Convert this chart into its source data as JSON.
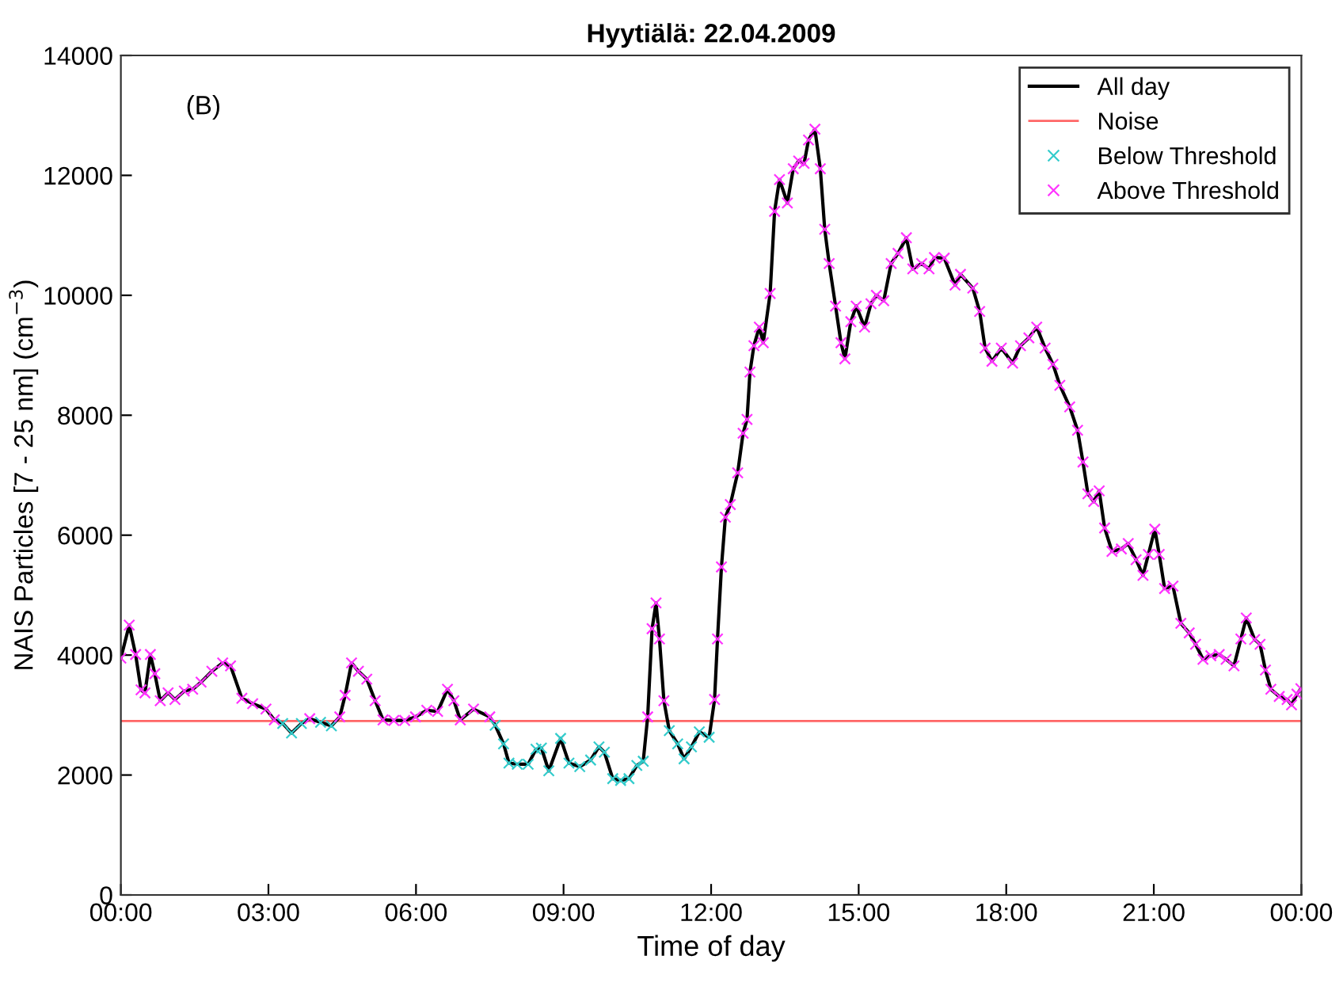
{
  "chart_data": {
    "type": "line",
    "title": "Hyytiälä: 22.04.2009",
    "xlabel": "Time of day",
    "ylabel": "NAIS Particles [7 - 25 nm] (cm$^{−3}$)",
    "annotations": [
      "(B)"
    ],
    "xlim": [
      0,
      24
    ],
    "xticks": [
      {
        "value": 0,
        "label": "00:00"
      },
      {
        "value": 3,
        "label": "03:00"
      },
      {
        "value": 6,
        "label": "06:00"
      },
      {
        "value": 9,
        "label": "09:00"
      },
      {
        "value": 12,
        "label": "12:00"
      },
      {
        "value": 15,
        "label": "15:00"
      },
      {
        "value": 18,
        "label": "18:00"
      },
      {
        "value": 21,
        "label": "21:00"
      },
      {
        "value": 24,
        "label": "00:00"
      }
    ],
    "ylim": [
      0,
      14000
    ],
    "yticks": [
      0,
      2000,
      4000,
      6000,
      8000,
      10000,
      12000,
      14000
    ],
    "grid": false,
    "legend": "top right",
    "ref_lines": [
      {
        "axis": "y",
        "value": 2900,
        "label": "Noise",
        "color": "#ff6666",
        "line_style": "solid"
      }
    ],
    "series": [
      {
        "name": "All day",
        "color": "#000000",
        "marker": "none",
        "line_style": "solid",
        "x": [
          0,
          0.17,
          0.3,
          0.41,
          0.49,
          0.6,
          0.69,
          0.8,
          0.96,
          1.1,
          1.29,
          1.46,
          1.63,
          1.85,
          2.07,
          2.23,
          2.46,
          2.68,
          2.95,
          3.12,
          3.29,
          3.47,
          3.67,
          3.84,
          4.06,
          4.28,
          4.45,
          4.56,
          4.69,
          4.83,
          5.0,
          5.17,
          5.33,
          5.55,
          5.77,
          5.99,
          6.22,
          6.44,
          6.64,
          6.77,
          6.9,
          7.17,
          7.5,
          7.61,
          7.78,
          7.89,
          8.06,
          8.28,
          8.44,
          8.55,
          8.7,
          8.94,
          9.11,
          9.33,
          9.55,
          9.72,
          9.83,
          10.0,
          10.16,
          10.33,
          10.49,
          10.62,
          10.71,
          10.8,
          10.88,
          10.95,
          11.04,
          11.15,
          11.32,
          11.45,
          11.6,
          11.76,
          11.96,
          12.07,
          12.13,
          12.21,
          12.29,
          12.39,
          12.54,
          12.65,
          12.73,
          12.79,
          12.87,
          12.98,
          13.06,
          13.2,
          13.29,
          13.39,
          13.55,
          13.67,
          13.78,
          13.89,
          13.98,
          14.11,
          14.22,
          14.31,
          14.4,
          14.53,
          14.64,
          14.72,
          14.84,
          14.95,
          15.12,
          15.25,
          15.36,
          15.51,
          15.66,
          15.8,
          15.97,
          16.1,
          16.28,
          16.43,
          16.54,
          16.74,
          16.96,
          17.07,
          17.32,
          17.46,
          17.57,
          17.71,
          17.9,
          18.13,
          18.29,
          18.46,
          18.62,
          18.79,
          18.95,
          19.09,
          19.29,
          19.45,
          19.56,
          19.66,
          19.78,
          19.89,
          20.0,
          20.15,
          20.34,
          20.48,
          20.64,
          20.78,
          20.89,
          21.02,
          21.11,
          21.22,
          21.39,
          21.55,
          21.72,
          21.85,
          22.0,
          22.16,
          22.33,
          22.47,
          22.63,
          22.77,
          22.88,
          23.05,
          23.16,
          23.27,
          23.38,
          23.55,
          23.71,
          23.8,
          23.91,
          23.99
        ],
        "values": [
          3950,
          4500,
          4010,
          3420,
          3370,
          4010,
          3690,
          3240,
          3370,
          3260,
          3400,
          3430,
          3550,
          3730,
          3870,
          3820,
          3280,
          3190,
          3100,
          2920,
          2860,
          2700,
          2860,
          2940,
          2880,
          2820,
          2970,
          3330,
          3870,
          3730,
          3600,
          3240,
          2920,
          2910,
          2910,
          2970,
          3080,
          3060,
          3430,
          3240,
          2920,
          3100,
          2970,
          2830,
          2520,
          2200,
          2180,
          2180,
          2430,
          2450,
          2070,
          2610,
          2200,
          2140,
          2250,
          2470,
          2380,
          1940,
          1910,
          1940,
          2160,
          2230,
          2970,
          4440,
          4870,
          4270,
          3240,
          2740,
          2520,
          2270,
          2470,
          2720,
          2630,
          3260,
          4270,
          5470,
          6300,
          6510,
          7040,
          7700,
          7930,
          8720,
          9160,
          9470,
          9210,
          10030,
          11400,
          11930,
          11540,
          12110,
          12240,
          12200,
          12590,
          12770,
          12110,
          11100,
          10530,
          9820,
          9210,
          8940,
          9560,
          9820,
          9470,
          9860,
          10000,
          9910,
          10530,
          10700,
          10960,
          10440,
          10530,
          10440,
          10630,
          10620,
          10170,
          10350,
          10120,
          9730,
          9120,
          8900,
          9120,
          8870,
          9160,
          9290,
          9470,
          9120,
          8850,
          8500,
          8140,
          7750,
          7220,
          6690,
          6560,
          6740,
          6120,
          5730,
          5770,
          5860,
          5590,
          5330,
          5680,
          6100,
          5680,
          5110,
          5150,
          4530,
          4370,
          4180,
          3930,
          3990,
          4010,
          3930,
          3820,
          4270,
          4620,
          4260,
          4180,
          3750,
          3430,
          3310,
          3260,
          3170,
          3350,
          3440
        ]
      },
      {
        "name": "Below Threshold",
        "type": "scatter",
        "color": "#33cccc",
        "marker": "cross",
        "x": [
          3.29,
          3.47,
          3.67,
          4.06,
          4.28,
          7.61,
          7.78,
          7.89,
          8.06,
          8.28,
          8.44,
          8.55,
          8.7,
          8.94,
          9.11,
          9.33,
          9.55,
          9.72,
          9.83,
          10.0,
          10.16,
          10.33,
          10.49,
          10.62,
          11.15,
          11.32,
          11.45,
          11.6,
          11.76,
          11.96
        ],
        "values": [
          2860,
          2700,
          2860,
          2880,
          2820,
          2830,
          2520,
          2200,
          2180,
          2180,
          2430,
          2450,
          2070,
          2610,
          2200,
          2140,
          2250,
          2470,
          2380,
          1940,
          1910,
          1940,
          2160,
          2230,
          2740,
          2520,
          2270,
          2470,
          2720,
          2630
        ]
      },
      {
        "name": "Above Threshold",
        "type": "scatter",
        "color": "#ff33ff",
        "marker": "cross",
        "x": [
          0,
          0.17,
          0.3,
          0.41,
          0.49,
          0.6,
          0.69,
          0.8,
          0.96,
          1.1,
          1.29,
          1.46,
          1.63,
          1.85,
          2.07,
          2.23,
          2.46,
          2.68,
          2.95,
          3.12,
          3.84,
          4.45,
          4.56,
          4.69,
          4.83,
          5.0,
          5.17,
          5.33,
          5.55,
          5.77,
          5.99,
          6.22,
          6.44,
          6.64,
          6.77,
          6.9,
          7.17,
          7.5,
          10.71,
          10.8,
          10.88,
          10.95,
          11.04,
          12.07,
          12.13,
          12.21,
          12.29,
          12.39,
          12.54,
          12.65,
          12.73,
          12.79,
          12.87,
          12.98,
          13.06,
          13.2,
          13.29,
          13.39,
          13.55,
          13.67,
          13.78,
          13.89,
          13.98,
          14.11,
          14.22,
          14.31,
          14.4,
          14.53,
          14.64,
          14.72,
          14.84,
          14.95,
          15.12,
          15.25,
          15.36,
          15.51,
          15.66,
          15.8,
          15.97,
          16.1,
          16.28,
          16.43,
          16.54,
          16.74,
          16.96,
          17.07,
          17.32,
          17.46,
          17.57,
          17.71,
          17.9,
          18.13,
          18.29,
          18.46,
          18.62,
          18.79,
          18.95,
          19.09,
          19.29,
          19.45,
          19.56,
          19.66,
          19.78,
          19.89,
          20.0,
          20.15,
          20.34,
          20.48,
          20.64,
          20.78,
          20.89,
          21.02,
          21.11,
          21.22,
          21.39,
          21.55,
          21.72,
          21.85,
          22.0,
          22.16,
          22.33,
          22.47,
          22.63,
          22.77,
          22.88,
          23.05,
          23.16,
          23.27,
          23.38,
          23.55,
          23.71,
          23.8,
          23.91,
          23.99
        ],
        "values": [
          3950,
          4500,
          4010,
          3420,
          3370,
          4010,
          3690,
          3240,
          3370,
          3260,
          3400,
          3430,
          3550,
          3730,
          3870,
          3820,
          3280,
          3190,
          3100,
          2920,
          2940,
          2970,
          3330,
          3870,
          3730,
          3600,
          3240,
          2920,
          2910,
          2910,
          2970,
          3080,
          3060,
          3430,
          3240,
          2920,
          3100,
          2970,
          2970,
          4440,
          4870,
          4270,
          3240,
          3260,
          4270,
          5470,
          6300,
          6510,
          7040,
          7700,
          7930,
          8720,
          9160,
          9470,
          9210,
          10030,
          11400,
          11930,
          11540,
          12110,
          12240,
          12200,
          12590,
          12770,
          12110,
          11100,
          10530,
          9820,
          9210,
          8940,
          9560,
          9820,
          9470,
          9860,
          10000,
          9910,
          10530,
          10700,
          10960,
          10440,
          10530,
          10440,
          10630,
          10620,
          10170,
          10350,
          10120,
          9730,
          9120,
          8900,
          9120,
          8870,
          9160,
          9290,
          9470,
          9120,
          8850,
          8500,
          8140,
          7750,
          7220,
          6690,
          6560,
          6740,
          6120,
          5730,
          5770,
          5860,
          5590,
          5330,
          5680,
          6100,
          5680,
          5110,
          5150,
          4530,
          4370,
          4180,
          3930,
          3990,
          4010,
          3930,
          3820,
          4270,
          4620,
          4260,
          4180,
          3750,
          3430,
          3310,
          3260,
          3170,
          3350,
          3440
        ]
      }
    ]
  }
}
